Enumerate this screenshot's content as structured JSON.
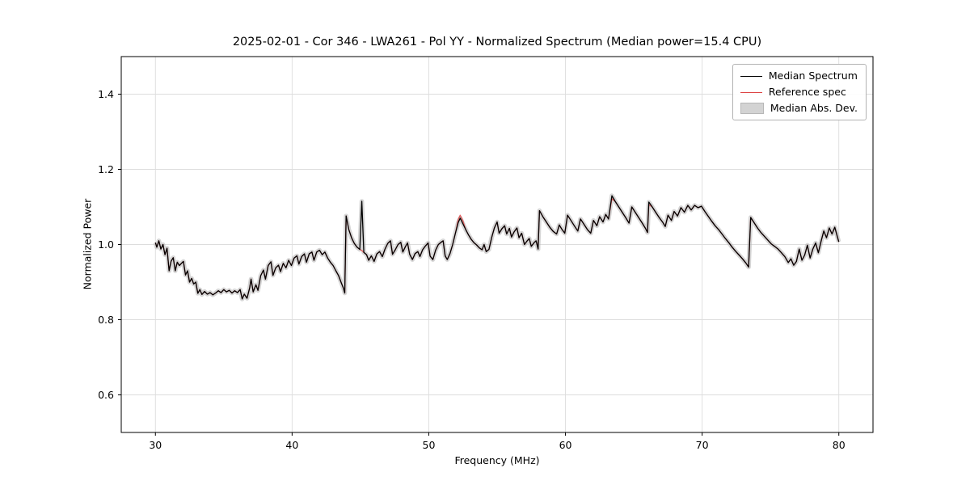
{
  "chart_data": {
    "type": "line",
    "title": "2025-02-01 - Cor 346 - LWA261 - Pol YY - Normalized Spectrum (Median power=15.4 CPU)",
    "xlabel": "Frequency (MHz)",
    "ylabel": "Normalized Power",
    "xlim": [
      27.5,
      82.5
    ],
    "ylim": [
      0.5,
      1.5
    ],
    "xticks": [
      30,
      40,
      50,
      60,
      70,
      80
    ],
    "yticks": [
      0.6,
      0.8,
      1.0,
      1.2,
      1.4
    ],
    "grid": true,
    "legend_position": "upper right",
    "series": [
      {
        "name": "Median Spectrum",
        "color": "#000000",
        "style": "line"
      },
      {
        "name": "Reference spec",
        "color": "#dd4444",
        "style": "line"
      },
      {
        "name": "Median Abs. Dev.",
        "color": "#bbbbbb",
        "style": "band",
        "band_halfwidth": 0.006
      }
    ],
    "median_points": [
      [
        30.0,
        1.005
      ],
      [
        30.1,
        0.993
      ],
      [
        30.25,
        1.01
      ],
      [
        30.4,
        0.988
      ],
      [
        30.55,
        1.0
      ],
      [
        30.7,
        0.973
      ],
      [
        30.85,
        0.99
      ],
      [
        31.0,
        0.93
      ],
      [
        31.15,
        0.956
      ],
      [
        31.3,
        0.965
      ],
      [
        31.45,
        0.93
      ],
      [
        31.6,
        0.953
      ],
      [
        31.75,
        0.944
      ],
      [
        31.9,
        0.95
      ],
      [
        32.05,
        0.955
      ],
      [
        32.2,
        0.919
      ],
      [
        32.35,
        0.93
      ],
      [
        32.5,
        0.9
      ],
      [
        32.65,
        0.91
      ],
      [
        32.8,
        0.895
      ],
      [
        32.95,
        0.9
      ],
      [
        33.1,
        0.87
      ],
      [
        33.25,
        0.88
      ],
      [
        33.4,
        0.867
      ],
      [
        33.6,
        0.875
      ],
      [
        33.8,
        0.868
      ],
      [
        34.0,
        0.872
      ],
      [
        34.2,
        0.866
      ],
      [
        34.4,
        0.871
      ],
      [
        34.6,
        0.877
      ],
      [
        34.8,
        0.872
      ],
      [
        35.0,
        0.88
      ],
      [
        35.2,
        0.874
      ],
      [
        35.4,
        0.878
      ],
      [
        35.6,
        0.871
      ],
      [
        35.8,
        0.877
      ],
      [
        36.0,
        0.872
      ],
      [
        36.2,
        0.88
      ],
      [
        36.35,
        0.855
      ],
      [
        36.5,
        0.868
      ],
      [
        36.7,
        0.857
      ],
      [
        36.9,
        0.885
      ],
      [
        37.0,
        0.908
      ],
      [
        37.15,
        0.874
      ],
      [
        37.35,
        0.893
      ],
      [
        37.5,
        0.878
      ],
      [
        37.7,
        0.917
      ],
      [
        37.9,
        0.932
      ],
      [
        38.05,
        0.908
      ],
      [
        38.25,
        0.944
      ],
      [
        38.45,
        0.954
      ],
      [
        38.6,
        0.918
      ],
      [
        38.8,
        0.938
      ],
      [
        39.0,
        0.945
      ],
      [
        39.15,
        0.928
      ],
      [
        39.35,
        0.95
      ],
      [
        39.55,
        0.938
      ],
      [
        39.75,
        0.958
      ],
      [
        39.95,
        0.944
      ],
      [
        40.15,
        0.964
      ],
      [
        40.35,
        0.97
      ],
      [
        40.5,
        0.948
      ],
      [
        40.7,
        0.968
      ],
      [
        40.9,
        0.975
      ],
      [
        41.05,
        0.953
      ],
      [
        41.25,
        0.975
      ],
      [
        41.45,
        0.98
      ],
      [
        41.6,
        0.958
      ],
      [
        41.8,
        0.98
      ],
      [
        42.0,
        0.985
      ],
      [
        42.2,
        0.973
      ],
      [
        42.4,
        0.98
      ],
      [
        42.6,
        0.964
      ],
      [
        42.8,
        0.953
      ],
      [
        43.0,
        0.944
      ],
      [
        43.2,
        0.93
      ],
      [
        43.4,
        0.917
      ],
      [
        43.6,
        0.898
      ],
      [
        43.75,
        0.884
      ],
      [
        43.85,
        0.871
      ],
      [
        43.95,
        1.076
      ],
      [
        44.15,
        1.04
      ],
      [
        44.35,
        1.018
      ],
      [
        44.55,
        1.003
      ],
      [
        44.75,
        0.993
      ],
      [
        44.95,
        0.987
      ],
      [
        45.1,
        1.115
      ],
      [
        45.25,
        0.979
      ],
      [
        45.45,
        0.973
      ],
      [
        45.6,
        0.958
      ],
      [
        45.8,
        0.97
      ],
      [
        46.0,
        0.955
      ],
      [
        46.2,
        0.975
      ],
      [
        46.4,
        0.981
      ],
      [
        46.6,
        0.968
      ],
      [
        46.8,
        0.988
      ],
      [
        47.0,
        1.003
      ],
      [
        47.2,
        1.01
      ],
      [
        47.35,
        0.974
      ],
      [
        47.55,
        0.986
      ],
      [
        47.75,
        1.0
      ],
      [
        47.95,
        1.006
      ],
      [
        48.1,
        0.98
      ],
      [
        48.3,
        0.995
      ],
      [
        48.45,
        1.004
      ],
      [
        48.6,
        0.974
      ],
      [
        48.8,
        0.96
      ],
      [
        49.0,
        0.976
      ],
      [
        49.2,
        0.981
      ],
      [
        49.35,
        0.968
      ],
      [
        49.55,
        0.986
      ],
      [
        49.75,
        0.996
      ],
      [
        49.95,
        1.004
      ],
      [
        50.1,
        0.969
      ],
      [
        50.3,
        0.96
      ],
      [
        50.5,
        0.985
      ],
      [
        50.7,
        1.0
      ],
      [
        50.9,
        1.006
      ],
      [
        51.05,
        1.01
      ],
      [
        51.2,
        0.97
      ],
      [
        51.35,
        0.96
      ],
      [
        51.55,
        0.976
      ],
      [
        51.75,
        1.0
      ],
      [
        51.95,
        1.03
      ],
      [
        52.15,
        1.058
      ],
      [
        52.3,
        1.07
      ],
      [
        52.5,
        1.055
      ],
      [
        52.7,
        1.04
      ],
      [
        52.9,
        1.026
      ],
      [
        53.1,
        1.014
      ],
      [
        53.3,
        1.005
      ],
      [
        53.5,
        0.999
      ],
      [
        53.7,
        0.991
      ],
      [
        53.9,
        0.986
      ],
      [
        54.05,
        1.0
      ],
      [
        54.2,
        0.981
      ],
      [
        54.4,
        0.987
      ],
      [
        54.6,
        1.018
      ],
      [
        54.8,
        1.044
      ],
      [
        55.0,
        1.06
      ],
      [
        55.15,
        1.03
      ],
      [
        55.35,
        1.042
      ],
      [
        55.55,
        1.05
      ],
      [
        55.7,
        1.028
      ],
      [
        55.9,
        1.043
      ],
      [
        56.05,
        1.02
      ],
      [
        56.25,
        1.034
      ],
      [
        56.45,
        1.044
      ],
      [
        56.6,
        1.018
      ],
      [
        56.8,
        1.03
      ],
      [
        57.0,
        1.0
      ],
      [
        57.2,
        1.01
      ],
      [
        57.35,
        1.016
      ],
      [
        57.5,
        0.995
      ],
      [
        57.7,
        1.005
      ],
      [
        57.85,
        1.01
      ],
      [
        58.0,
        0.988
      ],
      [
        58.1,
        1.09
      ],
      [
        58.35,
        1.074
      ],
      [
        58.6,
        1.06
      ],
      [
        58.85,
        1.046
      ],
      [
        59.1,
        1.035
      ],
      [
        59.35,
        1.028
      ],
      [
        59.55,
        1.052
      ],
      [
        59.75,
        1.04
      ],
      [
        59.95,
        1.03
      ],
      [
        60.15,
        1.078
      ],
      [
        60.4,
        1.064
      ],
      [
        60.65,
        1.05
      ],
      [
        60.9,
        1.036
      ],
      [
        61.1,
        1.068
      ],
      [
        61.35,
        1.054
      ],
      [
        61.6,
        1.04
      ],
      [
        61.85,
        1.03
      ],
      [
        62.05,
        1.064
      ],
      [
        62.3,
        1.05
      ],
      [
        62.5,
        1.074
      ],
      [
        62.75,
        1.06
      ],
      [
        62.95,
        1.08
      ],
      [
        63.15,
        1.068
      ],
      [
        63.4,
        1.13
      ],
      [
        63.65,
        1.114
      ],
      [
        63.9,
        1.1
      ],
      [
        64.15,
        1.086
      ],
      [
        64.4,
        1.072
      ],
      [
        64.65,
        1.057
      ],
      [
        64.85,
        1.1
      ],
      [
        65.1,
        1.086
      ],
      [
        65.35,
        1.072
      ],
      [
        65.6,
        1.058
      ],
      [
        65.85,
        1.043
      ],
      [
        66.0,
        1.032
      ],
      [
        66.1,
        1.113
      ],
      [
        66.35,
        1.1
      ],
      [
        66.6,
        1.086
      ],
      [
        66.85,
        1.072
      ],
      [
        67.1,
        1.06
      ],
      [
        67.3,
        1.048
      ],
      [
        67.5,
        1.078
      ],
      [
        67.75,
        1.064
      ],
      [
        67.95,
        1.088
      ],
      [
        68.2,
        1.076
      ],
      [
        68.45,
        1.098
      ],
      [
        68.7,
        1.086
      ],
      [
        68.95,
        1.104
      ],
      [
        69.2,
        1.092
      ],
      [
        69.45,
        1.104
      ],
      [
        69.7,
        1.098
      ],
      [
        69.95,
        1.102
      ],
      [
        70.2,
        1.088
      ],
      [
        70.45,
        1.075
      ],
      [
        70.7,
        1.062
      ],
      [
        70.95,
        1.05
      ],
      [
        71.2,
        1.04
      ],
      [
        71.45,
        1.028
      ],
      [
        71.7,
        1.016
      ],
      [
        71.95,
        1.005
      ],
      [
        72.2,
        0.993
      ],
      [
        72.45,
        0.982
      ],
      [
        72.7,
        0.972
      ],
      [
        72.95,
        0.962
      ],
      [
        73.2,
        0.951
      ],
      [
        73.4,
        0.94
      ],
      [
        73.55,
        1.072
      ],
      [
        73.8,
        1.058
      ],
      [
        74.05,
        1.044
      ],
      [
        74.3,
        1.032
      ],
      [
        74.55,
        1.022
      ],
      [
        74.8,
        1.012
      ],
      [
        75.05,
        1.002
      ],
      [
        75.3,
        0.995
      ],
      [
        75.55,
        0.988
      ],
      [
        75.8,
        0.978
      ],
      [
        76.05,
        0.968
      ],
      [
        76.3,
        0.952
      ],
      [
        76.5,
        0.962
      ],
      [
        76.7,
        0.945
      ],
      [
        76.9,
        0.955
      ],
      [
        77.1,
        0.988
      ],
      [
        77.3,
        0.958
      ],
      [
        77.5,
        0.972
      ],
      [
        77.7,
        0.998
      ],
      [
        77.9,
        0.964
      ],
      [
        78.1,
        0.988
      ],
      [
        78.3,
        1.004
      ],
      [
        78.5,
        0.978
      ],
      [
        78.7,
        1.008
      ],
      [
        78.9,
        1.036
      ],
      [
        79.1,
        1.018
      ],
      [
        79.3,
        1.044
      ],
      [
        79.5,
        1.028
      ],
      [
        79.7,
        1.046
      ],
      [
        79.9,
        1.02
      ],
      [
        80.0,
        1.007
      ]
    ],
    "reference_overrides": [
      [
        45.1,
        0.984
      ],
      [
        52.15,
        1.066
      ],
      [
        52.3,
        1.078
      ],
      [
        52.5,
        1.063
      ],
      [
        63.4,
        1.122
      ],
      [
        66.1,
        1.106
      ]
    ]
  }
}
